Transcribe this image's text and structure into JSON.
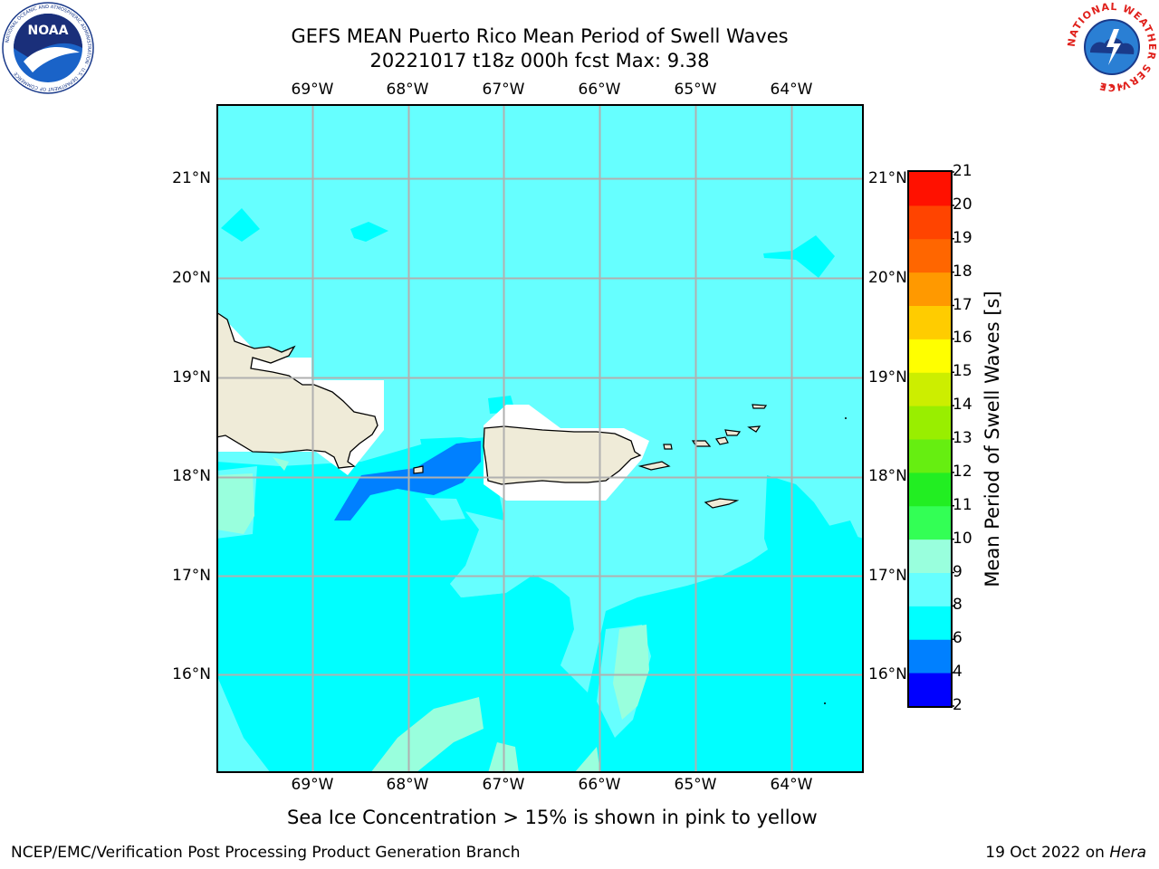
{
  "title": {
    "line1": "GEFS MEAN Puerto Rico Mean Period of Swell Waves",
    "line2": "20221017 t18z 000h fcst   Max: 9.38"
  },
  "map": {
    "extent": {
      "lon": [
        -70.0,
        -63.25
      ],
      "lat": [
        15.0,
        21.75
      ]
    },
    "ocean_color": "#66ffff",
    "land_color": "#efebd8",
    "lon_ticks": [
      {
        "label": "69°W",
        "lon": -69
      },
      {
        "label": "68°W",
        "lon": -68
      },
      {
        "label": "67°W",
        "lon": -67
      },
      {
        "label": "66°W",
        "lon": -66
      },
      {
        "label": "65°W",
        "lon": -65
      },
      {
        "label": "64°W",
        "lon": -64
      }
    ],
    "lat_ticks": [
      {
        "label": "21°N",
        "lat": 21
      },
      {
        "label": "20°N",
        "lat": 20
      },
      {
        "label": "19°N",
        "lat": 19
      },
      {
        "label": "18°N",
        "lat": 18
      },
      {
        "label": "17°N",
        "lat": 17
      },
      {
        "label": "16°N",
        "lat": 16
      }
    ],
    "gridlines": true
  },
  "colorbar": {
    "label": "Mean Period of Swell Waves [s]",
    "ticks": [
      "21",
      "20",
      "19",
      "18",
      "17",
      "16",
      "15",
      "14",
      "13",
      "12",
      "11",
      "10",
      "9",
      "8",
      "6",
      "4",
      "2"
    ],
    "segments": [
      {
        "from": 2,
        "to": 4,
        "color": "#0000ff"
      },
      {
        "from": 4,
        "to": 6,
        "color": "#0080ff"
      },
      {
        "from": 6,
        "to": 8,
        "color": "#00ffff"
      },
      {
        "from": 8,
        "to": 9,
        "color": "#66ffff"
      },
      {
        "from": 9,
        "to": 10,
        "color": "#99ffdd"
      },
      {
        "from": 10,
        "to": 11,
        "color": "#33ff55"
      },
      {
        "from": 11,
        "to": 12,
        "color": "#22ee22"
      },
      {
        "from": 12,
        "to": 13,
        "color": "#66ee11"
      },
      {
        "from": 13,
        "to": 14,
        "color": "#99ee00"
      },
      {
        "from": 14,
        "to": 15,
        "color": "#ccee00"
      },
      {
        "from": 15,
        "to": 16,
        "color": "#ffff00"
      },
      {
        "from": 16,
        "to": 17,
        "color": "#ffcc00"
      },
      {
        "from": 17,
        "to": 18,
        "color": "#ff9900"
      },
      {
        "from": 18,
        "to": 19,
        "color": "#ff6600"
      },
      {
        "from": 19,
        "to": 20,
        "color": "#ff4400"
      },
      {
        "from": 20,
        "to": 21,
        "color": "#ff1100"
      }
    ]
  },
  "footnote": "Sea Ice Concentration > 15% is shown in pink to yellow",
  "credit_left": "NCEP/EMC/Verification Post Processing Product Generation Branch",
  "credit_right": {
    "date": "19 Oct 2022 on ",
    "system": "Hera"
  },
  "logos": {
    "noaa": {
      "text": "NOAA",
      "ring": "NATIONAL OCEANIC AND ATMOSPHERIC ADMINISTRATION · U.S. DEPARTMENT OF COMMERCE"
    },
    "nws": {
      "ring": "NATIONAL WEATHER SERVICE"
    }
  }
}
